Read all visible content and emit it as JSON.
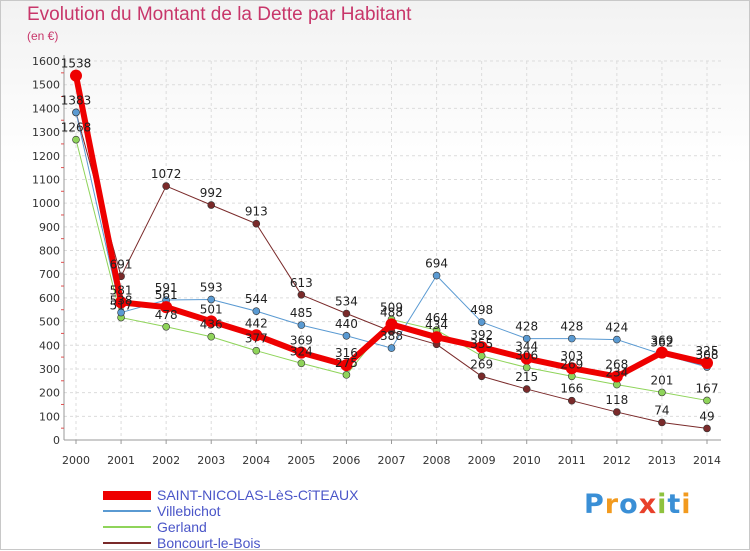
{
  "header": {
    "title": "Evolution du Montant de la Dette par Habitant",
    "unit": "(en €)"
  },
  "logo": {
    "text": "Proxiti",
    "letters": [
      {
        "ch": "P",
        "color": "#3a8fd6"
      },
      {
        "ch": "r",
        "color": "#f29a1e"
      },
      {
        "ch": "o",
        "color": "#3a8fd6"
      },
      {
        "ch": "x",
        "color": "#e8402a"
      },
      {
        "ch": "i",
        "color": "#8fc23e"
      },
      {
        "ch": "t",
        "color": "#3a8fd6"
      },
      {
        "ch": "i",
        "color": "#f29a1e"
      }
    ]
  },
  "chart_data": {
    "type": "line",
    "title": "Evolution du Montant de la Dette par Habitant",
    "ylabel": "(en €)",
    "xlabel": "",
    "ylim": [
      0,
      1600
    ],
    "yticks": [
      0,
      100,
      200,
      300,
      400,
      500,
      600,
      700,
      800,
      900,
      1000,
      1100,
      1200,
      1300,
      1400,
      1500,
      1600
    ],
    "categories": [
      "2000",
      "2001",
      "2002",
      "2003",
      "2004",
      "2005",
      "2006",
      "2007",
      "2008",
      "2009",
      "2010",
      "2011",
      "2012",
      "2013",
      "2014"
    ],
    "grid": true,
    "legend_position": "bottom-left",
    "series": [
      {
        "name": "Boncourt-le-Bois",
        "color": "#7a2a2a",
        "width": 1,
        "values": [
          1383,
          691,
          1072,
          992,
          913,
          613,
          534,
          458,
          404,
          269,
          215,
          166,
          118,
          74,
          49
        ],
        "labels": [
          "1383",
          "691",
          "1072",
          "992",
          "913",
          "613",
          "534",
          "",
          "",
          "269",
          "215",
          "166",
          "118",
          "74",
          "49"
        ]
      },
      {
        "name": "Gerland",
        "color": "#8fd45a",
        "width": 1,
        "values": [
          1268,
          517,
          478,
          436,
          377,
          324,
          275,
          509,
          464,
          355,
          306,
          269,
          234,
          201,
          167
        ],
        "labels": [
          "1268",
          "517",
          "478",
          "436",
          "377",
          "324",
          "275",
          "509",
          "464",
          "355",
          "306",
          "269",
          "234",
          "201",
          "167"
        ]
      },
      {
        "name": "Villebichot",
        "color": "#5a9ad2",
        "width": 1,
        "values": [
          1383,
          538,
          591,
          593,
          544,
          485,
          440,
          388,
          694,
          498,
          428,
          428,
          424,
          362,
          308
        ],
        "labels": [
          "",
          "538",
          "591",
          "593",
          "544",
          "485",
          "440",
          "388",
          "694",
          "498",
          "428",
          "428",
          "424",
          "362",
          "308"
        ]
      },
      {
        "name": "SAINT-NICOLAS-LèS-CîTEAUX",
        "color": "#ee0000",
        "width": 6,
        "values": [
          1538,
          581,
          561,
          501,
          442,
          369,
          316,
          488,
          434,
          392,
          344,
          303,
          268,
          369,
          325
        ],
        "labels": [
          "1538",
          "581",
          "561",
          "501",
          "442",
          "369",
          "316",
          "488",
          "434",
          "392",
          "344",
          "303",
          "268",
          "369",
          "325"
        ]
      }
    ]
  },
  "legend": [
    {
      "label": "SAINT-NICOLAS-LèS-CîTEAUX",
      "color": "#ee0000",
      "thick": true
    },
    {
      "label": "Villebichot",
      "color": "#5a9ad2",
      "thick": false
    },
    {
      "label": "Gerland",
      "color": "#8fd45a",
      "thick": false
    },
    {
      "label": "Boncourt-le-Bois",
      "color": "#7a2a2a",
      "thick": false
    }
  ]
}
